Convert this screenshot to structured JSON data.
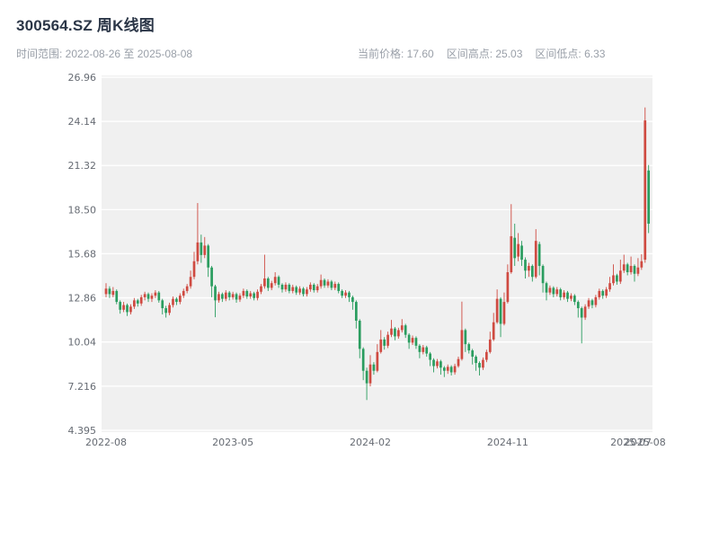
{
  "header": {
    "title": "300564.SZ 周K线图",
    "time_range": "时间范围: 2022-08-26 至 2025-08-08",
    "current_price": "当前价格: 17.60",
    "range_high": "区间高点: 25.03",
    "range_low": "区间低点: 6.33"
  },
  "colors": {
    "up": "#cf4a41",
    "down": "#2a9d5f",
    "plot_bg": "#f0f0f0",
    "grid": "#ffffff",
    "tick_text": "#666b73",
    "title_text": "#2b3647",
    "sub_text": "#999fa8"
  },
  "chart_data": {
    "type": "candlestick",
    "symbol": "300564.SZ",
    "interval": "weekly",
    "title": "300564.SZ 周K线图",
    "start_date": "2022-08-26",
    "end_date": "2025-08-08",
    "current_price": 17.6,
    "range_high": 25.03,
    "range_low": 6.33,
    "grid": "horizontal",
    "ylim": [
      4.395,
      26.96
    ],
    "y_tick_values": [
      26.96,
      24.14,
      21.32,
      18.5,
      15.68,
      12.86,
      10.04,
      7.216,
      4.395
    ],
    "y_tick_labels": [
      "26.96",
      "24.14",
      "21.32",
      "18.50",
      "15.68",
      "12.86",
      "10.04",
      "7.216",
      "4.395"
    ],
    "x_ticks": [
      {
        "index": 0,
        "label": "2022-08"
      },
      {
        "index": 36,
        "label": "2023-05"
      },
      {
        "index": 75,
        "label": "2024-02"
      },
      {
        "index": 114,
        "label": "2024-11"
      },
      {
        "index": 149,
        "label": "2025-07"
      },
      {
        "index": 153,
        "label": "2025-08"
      }
    ],
    "ohlc_format": [
      "open",
      "high",
      "low",
      "close"
    ],
    "ohlc": [
      [
        13.1,
        13.8,
        12.9,
        13.45
      ],
      [
        13.45,
        13.6,
        12.85,
        13.1
      ],
      [
        13.05,
        13.55,
        12.9,
        13.3
      ],
      [
        13.3,
        13.4,
        12.45,
        12.6
      ],
      [
        12.6,
        12.7,
        11.85,
        12.1
      ],
      [
        12.1,
        12.6,
        11.95,
        12.4
      ],
      [
        12.4,
        12.5,
        11.7,
        11.95
      ],
      [
        11.95,
        12.45,
        11.8,
        12.3
      ],
      [
        12.3,
        12.85,
        12.15,
        12.7
      ],
      [
        12.7,
        12.8,
        12.3,
        12.5
      ],
      [
        12.5,
        13.05,
        12.35,
        12.9
      ],
      [
        12.9,
        13.25,
        12.7,
        13.1
      ],
      [
        13.1,
        13.2,
        12.6,
        12.8
      ],
      [
        12.8,
        13.15,
        12.6,
        13.0
      ],
      [
        13.0,
        13.35,
        12.85,
        13.2
      ],
      [
        13.2,
        13.3,
        12.55,
        12.7
      ],
      [
        12.7,
        12.8,
        11.8,
        12.2
      ],
      [
        12.2,
        12.35,
        11.6,
        11.9
      ],
      [
        11.9,
        12.55,
        11.75,
        12.4
      ],
      [
        12.4,
        12.95,
        12.25,
        12.8
      ],
      [
        12.8,
        12.9,
        12.4,
        12.6
      ],
      [
        12.6,
        13.15,
        12.45,
        13.0
      ],
      [
        13.0,
        13.45,
        12.85,
        13.3
      ],
      [
        13.3,
        13.75,
        13.15,
        13.6
      ],
      [
        13.6,
        14.6,
        13.45,
        14.2
      ],
      [
        14.2,
        15.8,
        14.05,
        15.2
      ],
      [
        15.2,
        18.92,
        15.0,
        16.4
      ],
      [
        16.4,
        16.9,
        15.1,
        15.6
      ],
      [
        15.6,
        16.75,
        15.4,
        16.2
      ],
      [
        16.2,
        16.3,
        14.2,
        14.8
      ],
      [
        14.8,
        14.9,
        12.9,
        13.6
      ],
      [
        13.6,
        13.7,
        11.62,
        12.7
      ],
      [
        12.7,
        13.25,
        12.55,
        13.1
      ],
      [
        13.1,
        13.2,
        12.6,
        12.8
      ],
      [
        12.8,
        13.35,
        12.65,
        13.2
      ],
      [
        13.2,
        13.3,
        12.7,
        12.9
      ],
      [
        12.9,
        13.25,
        12.75,
        13.1
      ],
      [
        13.1,
        13.2,
        12.55,
        12.75
      ],
      [
        12.75,
        13.15,
        12.6,
        13.0
      ],
      [
        13.0,
        13.45,
        12.85,
        13.3
      ],
      [
        13.3,
        13.4,
        12.8,
        12.95
      ],
      [
        12.95,
        13.3,
        12.8,
        13.15
      ],
      [
        13.15,
        13.25,
        12.7,
        12.85
      ],
      [
        12.85,
        13.4,
        12.7,
        13.25
      ],
      [
        13.25,
        13.75,
        13.1,
        13.6
      ],
      [
        13.6,
        15.62,
        13.45,
        14.1
      ],
      [
        14.1,
        14.2,
        13.3,
        13.5
      ],
      [
        13.5,
        13.95,
        13.35,
        13.8
      ],
      [
        13.8,
        14.5,
        13.65,
        14.2
      ],
      [
        14.2,
        14.3,
        13.5,
        13.7
      ],
      [
        13.7,
        13.8,
        13.2,
        13.4
      ],
      [
        13.4,
        13.85,
        13.25,
        13.7
      ],
      [
        13.7,
        13.8,
        13.15,
        13.3
      ],
      [
        13.3,
        13.7,
        13.15,
        13.55
      ],
      [
        13.55,
        13.65,
        13.05,
        13.2
      ],
      [
        13.2,
        13.6,
        13.05,
        13.45
      ],
      [
        13.45,
        13.55,
        12.95,
        13.1
      ],
      [
        13.1,
        13.55,
        12.95,
        13.4
      ],
      [
        13.4,
        13.85,
        13.25,
        13.7
      ],
      [
        13.7,
        13.8,
        13.2,
        13.35
      ],
      [
        13.35,
        13.75,
        13.2,
        13.6
      ],
      [
        13.6,
        14.35,
        13.45,
        14.0
      ],
      [
        14.0,
        14.1,
        13.5,
        13.65
      ],
      [
        13.65,
        14.05,
        13.5,
        13.9
      ],
      [
        13.9,
        14.0,
        13.35,
        13.5
      ],
      [
        13.5,
        13.9,
        13.35,
        13.75
      ],
      [
        13.75,
        13.85,
        13.15,
        13.3
      ],
      [
        13.3,
        13.4,
        12.85,
        13.0
      ],
      [
        13.0,
        13.35,
        12.85,
        13.2
      ],
      [
        13.2,
        13.3,
        12.6,
        12.9
      ],
      [
        12.9,
        13.0,
        12.1,
        12.6
      ],
      [
        12.6,
        12.7,
        10.9,
        11.4
      ],
      [
        11.4,
        11.5,
        9.0,
        9.6
      ],
      [
        9.6,
        9.7,
        7.6,
        8.2
      ],
      [
        8.2,
        8.4,
        6.33,
        7.4
      ],
      [
        7.4,
        9.2,
        7.2,
        8.6
      ],
      [
        8.6,
        8.75,
        7.95,
        8.2
      ],
      [
        8.2,
        9.9,
        8.1,
        9.4
      ],
      [
        9.4,
        10.8,
        9.3,
        10.2
      ],
      [
        10.2,
        10.35,
        9.55,
        9.8
      ],
      [
        9.8,
        10.7,
        9.65,
        10.5
      ],
      [
        10.5,
        11.45,
        10.35,
        10.9
      ],
      [
        10.9,
        11.0,
        10.15,
        10.4
      ],
      [
        10.4,
        10.95,
        10.25,
        10.8
      ],
      [
        10.8,
        11.5,
        10.65,
        11.1
      ],
      [
        11.1,
        11.2,
        10.3,
        10.5
      ],
      [
        10.5,
        10.6,
        9.6,
        10.0
      ],
      [
        10.0,
        10.45,
        9.85,
        10.3
      ],
      [
        10.3,
        10.4,
        9.6,
        9.8
      ],
      [
        9.8,
        9.9,
        9.0,
        9.4
      ],
      [
        9.4,
        9.85,
        9.25,
        9.7
      ],
      [
        9.7,
        9.8,
        9.1,
        9.3
      ],
      [
        9.3,
        9.4,
        8.5,
        8.9
      ],
      [
        8.9,
        9.0,
        8.1,
        8.5
      ],
      [
        8.5,
        8.95,
        8.35,
        8.8
      ],
      [
        8.8,
        8.9,
        7.95,
        8.4
      ],
      [
        8.4,
        8.5,
        7.8,
        8.2
      ],
      [
        8.2,
        8.6,
        8.0,
        8.45
      ],
      [
        8.45,
        8.55,
        7.9,
        8.1
      ],
      [
        8.1,
        8.65,
        7.95,
        8.5
      ],
      [
        8.5,
        9.1,
        8.4,
        8.95
      ],
      [
        8.95,
        12.62,
        8.85,
        10.8
      ],
      [
        10.8,
        10.9,
        9.4,
        9.9
      ],
      [
        9.9,
        10.0,
        9.3,
        9.5
      ],
      [
        9.5,
        9.6,
        8.6,
        9.1
      ],
      [
        9.1,
        9.2,
        8.2,
        8.7
      ],
      [
        8.7,
        8.8,
        7.9,
        8.4
      ],
      [
        8.4,
        9.05,
        8.25,
        8.9
      ],
      [
        8.9,
        9.55,
        8.75,
        9.4
      ],
      [
        9.4,
        10.7,
        9.3,
        10.2
      ],
      [
        10.2,
        11.9,
        10.1,
        11.3
      ],
      [
        11.3,
        13.4,
        11.2,
        12.8
      ],
      [
        12.8,
        12.9,
        10.35,
        11.2
      ],
      [
        11.2,
        13.2,
        11.1,
        12.6
      ],
      [
        12.6,
        15.0,
        12.5,
        14.5
      ],
      [
        14.5,
        18.85,
        14.4,
        16.8
      ],
      [
        16.7,
        17.6,
        14.9,
        15.4
      ],
      [
        15.5,
        17.0,
        15.2,
        16.3
      ],
      [
        16.2,
        16.5,
        14.9,
        15.3
      ],
      [
        15.3,
        15.45,
        14.1,
        14.6
      ],
      [
        14.6,
        15.1,
        14.2,
        14.9
      ],
      [
        14.9,
        15.0,
        13.9,
        14.2
      ],
      [
        14.2,
        17.25,
        14.1,
        16.5
      ],
      [
        16.3,
        16.45,
        14.3,
        14.9
      ],
      [
        14.9,
        15.0,
        13.2,
        13.8
      ],
      [
        13.8,
        13.9,
        12.7,
        13.2
      ],
      [
        13.2,
        13.65,
        13.05,
        13.5
      ],
      [
        13.5,
        13.6,
        12.9,
        13.1
      ],
      [
        13.1,
        13.55,
        12.95,
        13.4
      ],
      [
        13.4,
        13.5,
        12.7,
        12.9
      ],
      [
        12.9,
        13.35,
        12.75,
        13.2
      ],
      [
        13.2,
        13.3,
        12.6,
        12.8
      ],
      [
        12.8,
        13.15,
        12.65,
        13.0
      ],
      [
        13.0,
        13.1,
        12.4,
        12.6
      ],
      [
        12.6,
        12.7,
        11.6,
        12.2
      ],
      [
        12.2,
        12.3,
        9.95,
        11.6
      ],
      [
        11.6,
        12.45,
        11.45,
        12.3
      ],
      [
        12.3,
        12.85,
        12.15,
        12.7
      ],
      [
        12.7,
        12.8,
        12.2,
        12.4
      ],
      [
        12.4,
        13.05,
        12.25,
        12.9
      ],
      [
        12.9,
        13.45,
        12.75,
        13.3
      ],
      [
        13.3,
        13.4,
        12.8,
        13.0
      ],
      [
        13.0,
        13.55,
        12.85,
        13.4
      ],
      [
        13.4,
        14.2,
        13.25,
        13.8
      ],
      [
        13.8,
        15.0,
        13.65,
        14.3
      ],
      [
        14.3,
        14.4,
        13.7,
        13.9
      ],
      [
        13.9,
        15.3,
        13.75,
        14.6
      ],
      [
        14.6,
        15.62,
        14.45,
        15.0
      ],
      [
        15.0,
        15.1,
        14.3,
        14.5
      ],
      [
        14.5,
        15.5,
        14.35,
        14.9
      ],
      [
        14.9,
        15.0,
        13.9,
        14.4
      ],
      [
        14.4,
        15.4,
        14.25,
        14.8
      ],
      [
        14.8,
        15.65,
        14.65,
        15.2
      ],
      [
        15.3,
        25.03,
        15.1,
        24.2
      ],
      [
        21.0,
        21.35,
        17.0,
        17.6
      ]
    ]
  }
}
